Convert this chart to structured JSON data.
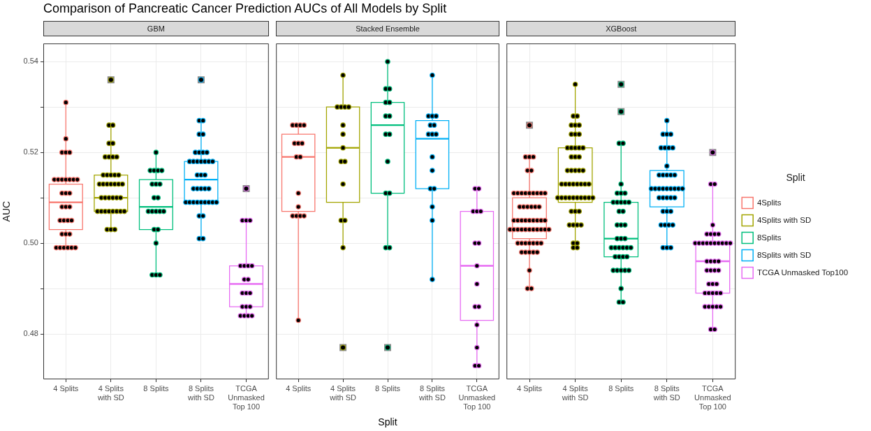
{
  "chart_data": [
    {
      "type": "box",
      "title": "Comparison of Pancreatic Cancer Prediction AUCs of All Models by Split",
      "subtitle": "GBM",
      "ylabel": "AUC",
      "categories": [
        "4 Splits",
        "4 Splits with SD",
        "8 Splits",
        "8 Splits with SD",
        "TCGA Unmasked Top 100"
      ],
      "ylim": [
        0.47,
        0.544
      ],
      "yticks": [
        0.48,
        {
          "value": 0.49,
          "label": null
        },
        {
          "value": 0.5,
          "label": "0.50"
        },
        {
          "value": 0.51,
          "label": null
        },
        0.52,
        {
          "value": 0.53,
          "label": null
        },
        0.54
      ],
      "grid": true,
      "series": [
        {
          "color": "#f8766d",
          "boxes": [
            {
              "low": 0.499,
              "q1": 0.503,
              "median": 0.509,
              "q3": 0.513,
              "high": 0.531
            },
            null,
            null,
            null,
            null
          ]
        },
        {
          "color": "#a3a500",
          "boxes": [
            null,
            {
              "low": 0.503,
              "q1": 0.507,
              "median": 0.51,
              "q3": 0.515,
              "high": 0.526,
              "outliers": [
                0.536
              ]
            },
            null,
            null,
            null
          ]
        },
        {
          "color": "#00bf7d",
          "boxes": [
            null,
            null,
            {
              "low": 0.493,
              "q1": 0.503,
              "median": 0.508,
              "q3": 0.514,
              "high": 0.52
            },
            null,
            null
          ]
        },
        {
          "color": "#00b0f6",
          "boxes": [
            null,
            null,
            null,
            {
              "low": 0.501,
              "q1": 0.509,
              "median": 0.514,
              "q3": 0.518,
              "high": 0.527,
              "outliers": [
                0.536
              ]
            },
            null
          ]
        },
        {
          "color": "#e76bf3",
          "boxes": [
            null,
            null,
            null,
            null,
            {
              "low": 0.484,
              "q1": 0.486,
              "median": 0.491,
              "q3": 0.495,
              "high": 0.505,
              "outliers": [
                0.512
              ]
            }
          ]
        },
        {
          "type": "scatter",
          "color": "#000000",
          "marker": "circle",
          "x": [
            "4 Splits",
            "4 Splits",
            "4 Splits",
            "4 Splits",
            "4 Splits",
            "4 Splits",
            "4 Splits",
            "4 Splits",
            "4 Splits",
            "4 Splits",
            "4 Splits",
            "4 Splits",
            "4 Splits",
            "4 Splits",
            "4 Splits",
            "4 Splits",
            "4 Splits",
            "4 Splits",
            "4 Splits",
            "4 Splits",
            "4 Splits",
            "4 Splits",
            "4 Splits",
            "4 Splits",
            "4 Splits",
            "4 Splits",
            "4 Splits",
            "4 Splits",
            "4 Splits",
            "4 Splits",
            "4 Splits"
          ],
          "values": [
            0.531,
            0.523,
            0.52,
            0.52,
            0.52,
            0.514,
            0.514,
            0.514,
            0.514,
            0.514,
            0.514,
            0.514,
            0.511,
            0.511,
            0.511,
            0.508,
            0.508,
            0.508,
            0.505,
            0.505,
            0.505,
            0.505,
            0.502,
            0.502,
            0.502,
            0.499,
            0.499,
            0.499,
            0.499,
            0.499,
            0.499
          ]
        },
        {
          "type": "scatter",
          "color": "#000000",
          "marker": "circle",
          "x": [
            "4 Splits with SD",
            "4 Splits with SD",
            "4 Splits with SD",
            "4 Splits with SD",
            "4 Splits with SD",
            "4 Splits with SD",
            "4 Splits with SD",
            "4 Splits with SD",
            "4 Splits with SD",
            "4 Splits with SD",
            "4 Splits with SD",
            "4 Splits with SD",
            "4 Splits with SD",
            "4 Splits with SD",
            "4 Splits with SD",
            "4 Splits with SD",
            "4 Splits with SD",
            "4 Splits with SD",
            "4 Splits with SD",
            "4 Splits with SD",
            "4 Splits with SD",
            "4 Splits with SD",
            "4 Splits with SD",
            "4 Splits with SD",
            "4 Splits with SD",
            "4 Splits with SD",
            "4 Splits with SD",
            "4 Splits with SD",
            "4 Splits with SD",
            "4 Splits with SD",
            "4 Splits with SD",
            "4 Splits with SD",
            "4 Splits with SD",
            "4 Splits with SD",
            "4 Splits with SD",
            "4 Splits with SD",
            "4 Splits with SD"
          ],
          "values": [
            0.526,
            0.526,
            0.522,
            0.522,
            0.519,
            0.519,
            0.519,
            0.519,
            0.515,
            0.515,
            0.515,
            0.515,
            0.515,
            0.513,
            0.513,
            0.513,
            0.513,
            0.513,
            0.513,
            0.513,
            0.51,
            0.51,
            0.51,
            0.51,
            0.51,
            0.51,
            0.507,
            0.507,
            0.507,
            0.507,
            0.507,
            0.507,
            0.507,
            0.507,
            0.503,
            0.503,
            0.503
          ]
        },
        {
          "type": "scatter",
          "color": "#000000",
          "marker": "circle",
          "x": [
            "8 Splits",
            "8 Splits",
            "8 Splits",
            "8 Splits",
            "8 Splits",
            "8 Splits",
            "8 Splits",
            "8 Splits",
            "8 Splits",
            "8 Splits",
            "8 Splits",
            "8 Splits",
            "8 Splits",
            "8 Splits",
            "8 Splits",
            "8 Splits",
            "8 Splits",
            "8 Splits",
            "8 Splits",
            "8 Splits",
            "8 Splits"
          ],
          "values": [
            0.52,
            0.516,
            0.516,
            0.516,
            0.516,
            0.513,
            0.513,
            0.513,
            0.51,
            0.51,
            0.507,
            0.507,
            0.507,
            0.507,
            0.507,
            0.503,
            0.503,
            0.5,
            0.493,
            0.493,
            0.493
          ]
        },
        {
          "type": "scatter",
          "color": "#000000",
          "marker": "circle",
          "x": [
            "8 Splits with SD",
            "8 Splits with SD",
            "8 Splits with SD",
            "8 Splits with SD",
            "8 Splits with SD",
            "8 Splits with SD",
            "8 Splits with SD",
            "8 Splits with SD",
            "8 Splits with SD",
            "8 Splits with SD",
            "8 Splits with SD",
            "8 Splits with SD",
            "8 Splits with SD",
            "8 Splits with SD",
            "8 Splits with SD",
            "8 Splits with SD",
            "8 Splits with SD",
            "8 Splits with SD",
            "8 Splits with SD",
            "8 Splits with SD",
            "8 Splits with SD",
            "8 Splits with SD",
            "8 Splits with SD",
            "8 Splits with SD",
            "8 Splits with SD",
            "8 Splits with SD",
            "8 Splits with SD",
            "8 Splits with SD",
            "8 Splits with SD",
            "8 Splits with SD",
            "8 Splits with SD",
            "8 Splits with SD",
            "8 Splits with SD",
            "8 Splits with SD",
            "8 Splits with SD",
            "8 Splits with SD"
          ],
          "values": [
            0.527,
            0.527,
            0.524,
            0.524,
            0.52,
            0.52,
            0.52,
            0.52,
            0.518,
            0.518,
            0.518,
            0.518,
            0.518,
            0.518,
            0.518,
            0.515,
            0.515,
            0.515,
            0.512,
            0.512,
            0.512,
            0.512,
            0.512,
            0.509,
            0.509,
            0.509,
            0.509,
            0.509,
            0.509,
            0.509,
            0.509,
            0.509,
            0.506,
            0.506,
            0.501,
            0.501
          ]
        },
        {
          "type": "scatter",
          "color": "#000000",
          "marker": "circle",
          "x": [
            "TCGA Unmasked Top 100",
            "TCGA Unmasked Top 100",
            "TCGA Unmasked Top 100",
            "TCGA Unmasked Top 100",
            "TCGA Unmasked Top 100",
            "TCGA Unmasked Top 100",
            "TCGA Unmasked Top 100",
            "TCGA Unmasked Top 100",
            "TCGA Unmasked Top 100",
            "TCGA Unmasked Top 100",
            "TCGA Unmasked Top 100",
            "TCGA Unmasked Top 100",
            "TCGA Unmasked Top 100",
            "TCGA Unmasked Top 100",
            "TCGA Unmasked Top 100",
            "TCGA Unmasked Top 100",
            "TCGA Unmasked Top 100",
            "TCGA Unmasked Top 100",
            "TCGA Unmasked Top 100"
          ],
          "values": [
            0.505,
            0.505,
            0.505,
            0.495,
            0.495,
            0.495,
            0.495,
            0.492,
            0.492,
            0.489,
            0.489,
            0.489,
            0.486,
            0.486,
            0.486,
            0.484,
            0.484,
            0.484,
            0.484
          ]
        }
      ]
    },
    {
      "type": "box",
      "subtitle": "Stacked Ensemble",
      "xlabel": "Split",
      "categories": [
        "4 Splits",
        "4 Splits with SD",
        "8 Splits",
        "8 Splits with SD",
        "TCGA Unmasked Top 100"
      ],
      "ylim": [
        0.47,
        0.544
      ],
      "yticks": [
        0.48,
        0.49,
        0.5,
        0.51,
        0.52,
        0.53,
        0.54
      ],
      "grid": true,
      "tick_labels": "x",
      "series": [
        {
          "color": "#f8766d",
          "boxes": [
            {
              "low": 0.483,
              "q1": 0.507,
              "median": 0.519,
              "q3": 0.524,
              "high": 0.526
            },
            null,
            null,
            null,
            null
          ]
        },
        {
          "color": "#a3a500",
          "boxes": [
            null,
            {
              "low": 0.499,
              "q1": 0.509,
              "median": 0.521,
              "q3": 0.53,
              "high": 0.537,
              "outliers": [
                0.477
              ]
            },
            null,
            null,
            null
          ]
        },
        {
          "color": "#00bf7d",
          "boxes": [
            null,
            null,
            {
              "low": 0.499,
              "q1": 0.511,
              "median": 0.526,
              "q3": 0.531,
              "high": 0.54,
              "outliers": [
                0.477
              ]
            },
            null,
            null
          ]
        },
        {
          "color": "#00b0f6",
          "boxes": [
            null,
            null,
            null,
            {
              "low": 0.492,
              "q1": 0.512,
              "median": 0.523,
              "q3": 0.527,
              "high": 0.537
            },
            null
          ]
        },
        {
          "color": "#e76bf3",
          "boxes": [
            null,
            null,
            null,
            null,
            {
              "low": 0.473,
              "q1": 0.483,
              "median": 0.495,
              "q3": 0.507,
              "high": 0.512
            }
          ]
        },
        {
          "type": "scatter",
          "color": "#000000",
          "marker": "circle",
          "x": [
            "4 Splits",
            "4 Splits",
            "4 Splits",
            "4 Splits",
            "4 Splits",
            "4 Splits",
            "4 Splits",
            "4 Splits",
            "4 Splits",
            "4 Splits",
            "4 Splits",
            "4 Splits",
            "4 Splits",
            "4 Splits",
            "4 Splits",
            "4 Splits"
          ],
          "values": [
            0.526,
            0.526,
            0.526,
            0.526,
            0.522,
            0.522,
            0.522,
            0.519,
            0.519,
            0.511,
            0.508,
            0.506,
            0.506,
            0.506,
            0.506,
            0.483
          ]
        },
        {
          "type": "scatter",
          "color": "#000000",
          "marker": "circle",
          "x": [
            "4 Splits with SD",
            "4 Splits with SD",
            "4 Splits with SD",
            "4 Splits with SD",
            "4 Splits with SD",
            "4 Splits with SD",
            "4 Splits with SD",
            "4 Splits with SD",
            "4 Splits with SD",
            "4 Splits with SD",
            "4 Splits with SD",
            "4 Splits with SD",
            "4 Splits with SD",
            "4 Splits with SD"
          ],
          "values": [
            0.537,
            0.53,
            0.53,
            0.53,
            0.53,
            0.526,
            0.524,
            0.521,
            0.518,
            0.518,
            0.513,
            0.505,
            0.505,
            0.499
          ]
        },
        {
          "type": "scatter",
          "color": "#000000",
          "marker": "circle",
          "x": [
            "8 Splits",
            "8 Splits",
            "8 Splits",
            "8 Splits",
            "8 Splits",
            "8 Splits",
            "8 Splits",
            "8 Splits",
            "8 Splits",
            "8 Splits",
            "8 Splits",
            "8 Splits",
            "8 Splits",
            "8 Splits"
          ],
          "values": [
            0.54,
            0.534,
            0.534,
            0.531,
            0.531,
            0.528,
            0.528,
            0.524,
            0.524,
            0.518,
            0.511,
            0.511,
            0.499,
            0.499
          ]
        },
        {
          "type": "scatter",
          "color": "#000000",
          "marker": "circle",
          "x": [
            "8 Splits with SD",
            "8 Splits with SD",
            "8 Splits with SD",
            "8 Splits with SD",
            "8 Splits with SD",
            "8 Splits with SD",
            "8 Splits with SD",
            "8 Splits with SD",
            "8 Splits with SD",
            "8 Splits with SD",
            "8 Splits with SD",
            "8 Splits with SD",
            "8 Splits with SD",
            "8 Splits with SD",
            "8 Splits with SD",
            "8 Splits with SD"
          ],
          "values": [
            0.537,
            0.528,
            0.528,
            0.528,
            0.526,
            0.526,
            0.524,
            0.524,
            0.524,
            0.519,
            0.516,
            0.512,
            0.512,
            0.508,
            0.505,
            0.492
          ]
        },
        {
          "type": "scatter",
          "color": "#000000",
          "marker": "circle",
          "x": [
            "TCGA Unmasked Top 100",
            "TCGA Unmasked Top 100",
            "TCGA Unmasked Top 100",
            "TCGA Unmasked Top 100",
            "TCGA Unmasked Top 100",
            "TCGA Unmasked Top 100",
            "TCGA Unmasked Top 100",
            "TCGA Unmasked Top 100",
            "TCGA Unmasked Top 100",
            "TCGA Unmasked Top 100",
            "TCGA Unmasked Top 100",
            "TCGA Unmasked Top 100",
            "TCGA Unmasked Top 100",
            "TCGA Unmasked Top 100",
            "TCGA Unmasked Top 100"
          ],
          "values": [
            0.512,
            0.512,
            0.507,
            0.507,
            0.507,
            0.5,
            0.5,
            0.495,
            0.491,
            0.486,
            0.486,
            0.482,
            0.477,
            0.473,
            0.473
          ]
        }
      ]
    },
    {
      "type": "box",
      "subtitle": "XGBoost",
      "legend_title": "Split",
      "legend": "right",
      "categories": [
        "4 Splits",
        "4 Splits with SD",
        "8 Splits",
        "8 Splits with SD",
        "TCGA Unmasked Top 100"
      ],
      "ylim": [
        0.47,
        0.544
      ],
      "yticks": [
        0.48,
        0.49,
        0.5,
        0.51,
        0.52,
        0.53,
        0.54
      ],
      "grid": true,
      "tick_labels": "x",
      "series": [
        {
          "name": "4Splits",
          "color": "#f8766d",
          "boxes": [
            {
              "low": 0.49,
              "q1": 0.501,
              "median": 0.505,
              "q3": 0.51,
              "high": 0.519,
              "outliers": [
                0.526
              ]
            },
            null,
            null,
            null,
            null
          ]
        },
        {
          "name": "4Splits with SD",
          "color": "#a3a500",
          "boxes": [
            null,
            {
              "low": 0.499,
              "q1": 0.509,
              "median": 0.51,
              "q3": 0.521,
              "high": 0.535
            },
            null,
            null,
            null
          ]
        },
        {
          "name": "8Splits",
          "color": "#00bf7d",
          "boxes": [
            null,
            null,
            {
              "low": 0.487,
              "q1": 0.497,
              "median": 0.501,
              "q3": 0.509,
              "high": 0.522,
              "outliers": [
                0.535,
                0.529
              ]
            },
            null,
            null
          ]
        },
        {
          "name": "8Splits with SD",
          "color": "#00b0f6",
          "boxes": [
            null,
            null,
            null,
            {
              "low": 0.499,
              "q1": 0.508,
              "median": 0.512,
              "q3": 0.516,
              "high": 0.527
            },
            null
          ]
        },
        {
          "name": "TCGA Unmasked Top100",
          "color": "#e76bf3",
          "boxes": [
            null,
            null,
            null,
            null,
            {
              "low": 0.481,
              "q1": 0.489,
              "median": 0.496,
              "q3": 0.5,
              "high": 0.513,
              "outliers": [
                0.52
              ]
            }
          ]
        },
        {
          "type": "scatter",
          "color": "#000000",
          "marker": "circle",
          "x": [
            "4 Splits",
            "4 Splits",
            "4 Splits",
            "4 Splits",
            "4 Splits",
            "4 Splits",
            "4 Splits",
            "4 Splits",
            "4 Splits",
            "4 Splits",
            "4 Splits",
            "4 Splits",
            "4 Splits",
            "4 Splits",
            "4 Splits",
            "4 Splits",
            "4 Splits",
            "4 Splits",
            "4 Splits",
            "4 Splits",
            "4 Splits",
            "4 Splits",
            "4 Splits",
            "4 Splits",
            "4 Splits",
            "4 Splits",
            "4 Splits",
            "4 Splits",
            "4 Splits",
            "4 Splits",
            "4 Splits",
            "4 Splits",
            "4 Splits",
            "4 Splits",
            "4 Splits",
            "4 Splits",
            "4 Splits",
            "4 Splits",
            "4 Splits",
            "4 Splits",
            "4 Splits",
            "4 Splits",
            "4 Splits",
            "4 Splits",
            "4 Splits",
            "4 Splits",
            "4 Splits",
            "4 Splits",
            "4 Splits",
            "4 Splits",
            "4 Splits",
            "4 Splits",
            "4 Splits",
            "4 Splits",
            "4 Splits"
          ],
          "values": [
            0.519,
            0.519,
            0.519,
            0.516,
            0.516,
            0.511,
            0.511,
            0.511,
            0.511,
            0.511,
            0.511,
            0.511,
            0.511,
            0.511,
            0.508,
            0.508,
            0.508,
            0.508,
            0.508,
            0.508,
            0.505,
            0.505,
            0.505,
            0.505,
            0.505,
            0.505,
            0.505,
            0.505,
            0.505,
            0.503,
            0.503,
            0.503,
            0.503,
            0.503,
            0.503,
            0.503,
            0.503,
            0.503,
            0.503,
            0.503,
            0.5,
            0.5,
            0.5,
            0.5,
            0.5,
            0.5,
            0.5,
            0.498,
            0.498,
            0.498,
            0.498,
            0.498,
            0.494,
            0.49,
            0.49
          ]
        },
        {
          "type": "scatter",
          "color": "#000000",
          "marker": "circle",
          "x": [
            "4 Splits with SD",
            "4 Splits with SD",
            "4 Splits with SD",
            "4 Splits with SD",
            "4 Splits with SD",
            "4 Splits with SD",
            "4 Splits with SD",
            "4 Splits with SD",
            "4 Splits with SD",
            "4 Splits with SD",
            "4 Splits with SD",
            "4 Splits with SD",
            "4 Splits with SD",
            "4 Splits with SD",
            "4 Splits with SD",
            "4 Splits with SD",
            "4 Splits with SD",
            "4 Splits with SD",
            "4 Splits with SD",
            "4 Splits with SD",
            "4 Splits with SD",
            "4 Splits with SD",
            "4 Splits with SD",
            "4 Splits with SD",
            "4 Splits with SD",
            "4 Splits with SD",
            "4 Splits with SD",
            "4 Splits with SD",
            "4 Splits with SD",
            "4 Splits with SD",
            "4 Splits with SD",
            "4 Splits with SD",
            "4 Splits with SD",
            "4 Splits with SD",
            "4 Splits with SD",
            "4 Splits with SD",
            "4 Splits with SD",
            "4 Splits with SD",
            "4 Splits with SD",
            "4 Splits with SD",
            "4 Splits with SD",
            "4 Splits with SD",
            "4 Splits with SD",
            "4 Splits with SD",
            "4 Splits with SD",
            "4 Splits with SD",
            "4 Splits with SD",
            "4 Splits with SD",
            "4 Splits with SD",
            "4 Splits with SD",
            "4 Splits with SD"
          ],
          "values": [
            0.535,
            0.528,
            0.528,
            0.526,
            0.526,
            0.526,
            0.524,
            0.524,
            0.524,
            0.521,
            0.521,
            0.521,
            0.521,
            0.521,
            0.519,
            0.519,
            0.519,
            0.516,
            0.516,
            0.516,
            0.516,
            0.516,
            0.513,
            0.513,
            0.513,
            0.513,
            0.513,
            0.513,
            0.513,
            0.513,
            0.51,
            0.51,
            0.51,
            0.51,
            0.51,
            0.51,
            0.51,
            0.51,
            0.51,
            0.51,
            0.507,
            0.507,
            0.507,
            0.504,
            0.504,
            0.504,
            0.504,
            0.5,
            0.5,
            0.499,
            0.499
          ]
        },
        {
          "type": "scatter",
          "color": "#000000",
          "marker": "circle",
          "x": [
            "8 Splits",
            "8 Splits",
            "8 Splits",
            "8 Splits",
            "8 Splits",
            "8 Splits",
            "8 Splits",
            "8 Splits",
            "8 Splits",
            "8 Splits",
            "8 Splits",
            "8 Splits",
            "8 Splits",
            "8 Splits",
            "8 Splits",
            "8 Splits",
            "8 Splits",
            "8 Splits",
            "8 Splits",
            "8 Splits",
            "8 Splits",
            "8 Splits",
            "8 Splits",
            "8 Splits",
            "8 Splits",
            "8 Splits",
            "8 Splits",
            "8 Splits",
            "8 Splits",
            "8 Splits",
            "8 Splits",
            "8 Splits",
            "8 Splits",
            "8 Splits",
            "8 Splits",
            "8 Splits",
            "8 Splits"
          ],
          "values": [
            0.522,
            0.522,
            0.513,
            0.511,
            0.511,
            0.511,
            0.509,
            0.509,
            0.509,
            0.509,
            0.509,
            0.507,
            0.507,
            0.504,
            0.504,
            0.504,
            0.501,
            0.501,
            0.501,
            0.499,
            0.499,
            0.499,
            0.499,
            0.499,
            0.499,
            0.497,
            0.497,
            0.497,
            0.497,
            0.494,
            0.494,
            0.494,
            0.494,
            0.494,
            0.49,
            0.487,
            0.487
          ]
        },
        {
          "type": "scatter",
          "color": "#000000",
          "marker": "circle",
          "x": [
            "8 Splits with SD",
            "8 Splits with SD",
            "8 Splits with SD",
            "8 Splits with SD",
            "8 Splits with SD",
            "8 Splits with SD",
            "8 Splits with SD",
            "8 Splits with SD",
            "8 Splits with SD",
            "8 Splits with SD",
            "8 Splits with SD",
            "8 Splits with SD",
            "8 Splits with SD",
            "8 Splits with SD",
            "8 Splits with SD",
            "8 Splits with SD",
            "8 Splits with SD",
            "8 Splits with SD",
            "8 Splits with SD",
            "8 Splits with SD",
            "8 Splits with SD",
            "8 Splits with SD",
            "8 Splits with SD",
            "8 Splits with SD",
            "8 Splits with SD",
            "8 Splits with SD",
            "8 Splits with SD",
            "8 Splits with SD",
            "8 Splits with SD",
            "8 Splits with SD",
            "8 Splits with SD",
            "8 Splits with SD",
            "8 Splits with SD",
            "8 Splits with SD",
            "8 Splits with SD",
            "8 Splits with SD",
            "8 Splits with SD",
            "8 Splits with SD"
          ],
          "values": [
            0.527,
            0.524,
            0.524,
            0.524,
            0.521,
            0.521,
            0.521,
            0.521,
            0.517,
            0.515,
            0.515,
            0.515,
            0.515,
            0.515,
            0.512,
            0.512,
            0.512,
            0.512,
            0.512,
            0.512,
            0.512,
            0.512,
            0.512,
            0.51,
            0.51,
            0.51,
            0.51,
            0.51,
            0.507,
            0.507,
            0.507,
            0.504,
            0.504,
            0.504,
            0.504,
            0.499,
            0.499,
            0.499
          ]
        },
        {
          "type": "scatter",
          "color": "#000000",
          "marker": "circle",
          "x": [
            "TCGA Unmasked Top 100",
            "TCGA Unmasked Top 100",
            "TCGA Unmasked Top 100",
            "TCGA Unmasked Top 100",
            "TCGA Unmasked Top 100",
            "TCGA Unmasked Top 100",
            "TCGA Unmasked Top 100",
            "TCGA Unmasked Top 100",
            "TCGA Unmasked Top 100",
            "TCGA Unmasked Top 100",
            "TCGA Unmasked Top 100",
            "TCGA Unmasked Top 100",
            "TCGA Unmasked Top 100",
            "TCGA Unmasked Top 100",
            "TCGA Unmasked Top 100",
            "TCGA Unmasked Top 100",
            "TCGA Unmasked Top 100",
            "TCGA Unmasked Top 100",
            "TCGA Unmasked Top 100",
            "TCGA Unmasked Top 100",
            "TCGA Unmasked Top 100",
            "TCGA Unmasked Top 100",
            "TCGA Unmasked Top 100",
            "TCGA Unmasked Top 100",
            "TCGA Unmasked Top 100",
            "TCGA Unmasked Top 100",
            "TCGA Unmasked Top 100",
            "TCGA Unmasked Top 100",
            "TCGA Unmasked Top 100",
            "TCGA Unmasked Top 100",
            "TCGA Unmasked Top 100",
            "TCGA Unmasked Top 100",
            "TCGA Unmasked Top 100",
            "TCGA Unmasked Top 100",
            "TCGA Unmasked Top 100",
            "TCGA Unmasked Top 100",
            "TCGA Unmasked Top 100",
            "TCGA Unmasked Top 100",
            "TCGA Unmasked Top 100",
            "TCGA Unmasked Top 100"
          ],
          "values": [
            0.513,
            0.513,
            0.504,
            0.502,
            0.502,
            0.502,
            0.502,
            0.5,
            0.5,
            0.5,
            0.5,
            0.5,
            0.5,
            0.5,
            0.5,
            0.5,
            0.5,
            0.496,
            0.496,
            0.496,
            0.496,
            0.494,
            0.494,
            0.494,
            0.494,
            0.491,
            0.491,
            0.491,
            0.489,
            0.489,
            0.489,
            0.489,
            0.489,
            0.486,
            0.486,
            0.486,
            0.486,
            0.486,
            0.481,
            0.481
          ]
        }
      ]
    }
  ]
}
